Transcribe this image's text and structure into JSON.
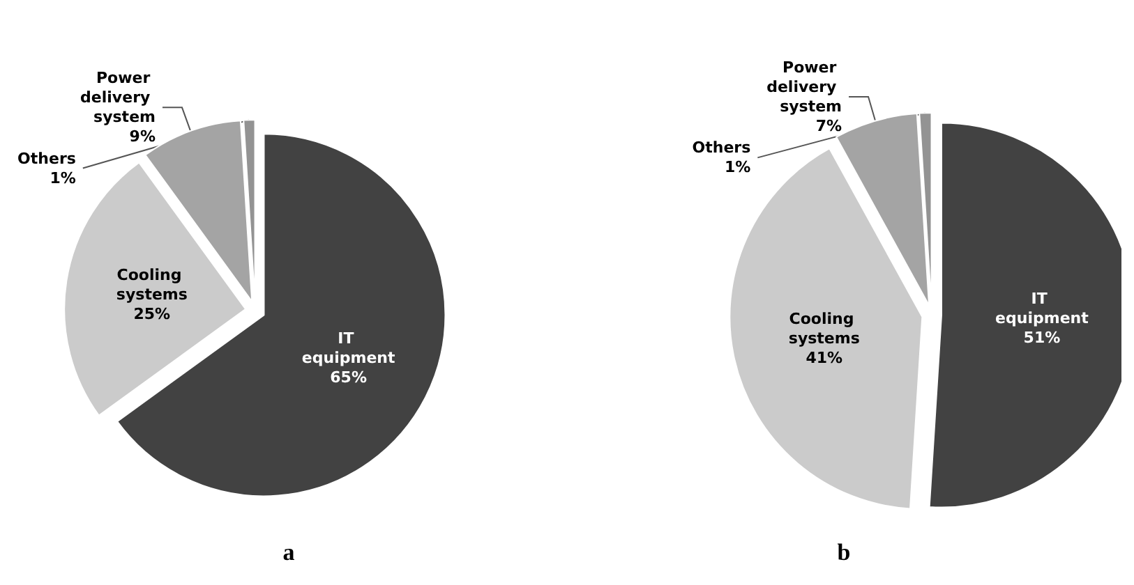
{
  "chart_data": [
    {
      "type": "pie",
      "title": "a",
      "categories": [
        "IT equipment",
        "Cooling systems",
        "Power delivery system",
        "Others"
      ],
      "values": [
        65,
        25,
        9,
        1
      ],
      "colors": [
        "#424242",
        "#cbcbcb",
        "#a4a4a4",
        "#939393"
      ],
      "value_labels": [
        "65%",
        "25%",
        "9%",
        "1%"
      ]
    },
    {
      "type": "pie",
      "title": "b",
      "categories": [
        "IT equipment",
        "Cooling systems",
        "Power delivery system",
        "Others"
      ],
      "values": [
        51,
        41,
        7,
        1
      ],
      "colors": [
        "#424242",
        "#cbcbcb",
        "#a4a4a4",
        "#939393"
      ],
      "value_labels": [
        "51%",
        "41%",
        "7%",
        "1%"
      ]
    }
  ]
}
